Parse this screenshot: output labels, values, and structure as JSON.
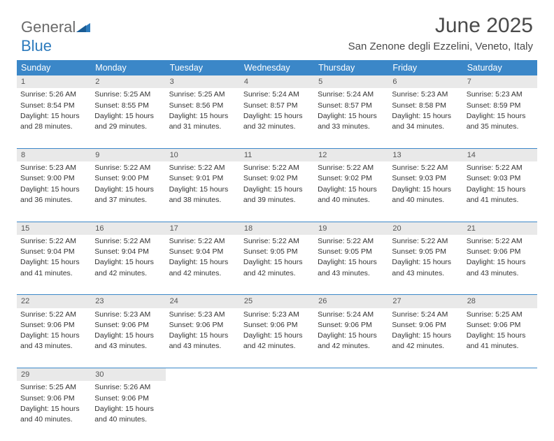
{
  "logo": {
    "part1": "General",
    "part2": "Blue"
  },
  "title": "June 2025",
  "location": "San Zenone degli Ezzelini, Veneto, Italy",
  "header_bg": "#3b87c8",
  "daynum_bg": "#e9e9e9",
  "rule_color": "#3b87c8",
  "text_color": "#333333",
  "columns": [
    "Sunday",
    "Monday",
    "Tuesday",
    "Wednesday",
    "Thursday",
    "Friday",
    "Saturday"
  ],
  "weeks": [
    {
      "nums": [
        "1",
        "2",
        "3",
        "4",
        "5",
        "6",
        "7"
      ],
      "cells": [
        {
          "sunrise": "Sunrise: 5:26 AM",
          "sunset": "Sunset: 8:54 PM",
          "day1": "Daylight: 15 hours",
          "day2": "and 28 minutes."
        },
        {
          "sunrise": "Sunrise: 5:25 AM",
          "sunset": "Sunset: 8:55 PM",
          "day1": "Daylight: 15 hours",
          "day2": "and 29 minutes."
        },
        {
          "sunrise": "Sunrise: 5:25 AM",
          "sunset": "Sunset: 8:56 PM",
          "day1": "Daylight: 15 hours",
          "day2": "and 31 minutes."
        },
        {
          "sunrise": "Sunrise: 5:24 AM",
          "sunset": "Sunset: 8:57 PM",
          "day1": "Daylight: 15 hours",
          "day2": "and 32 minutes."
        },
        {
          "sunrise": "Sunrise: 5:24 AM",
          "sunset": "Sunset: 8:57 PM",
          "day1": "Daylight: 15 hours",
          "day2": "and 33 minutes."
        },
        {
          "sunrise": "Sunrise: 5:23 AM",
          "sunset": "Sunset: 8:58 PM",
          "day1": "Daylight: 15 hours",
          "day2": "and 34 minutes."
        },
        {
          "sunrise": "Sunrise: 5:23 AM",
          "sunset": "Sunset: 8:59 PM",
          "day1": "Daylight: 15 hours",
          "day2": "and 35 minutes."
        }
      ]
    },
    {
      "nums": [
        "8",
        "9",
        "10",
        "11",
        "12",
        "13",
        "14"
      ],
      "cells": [
        {
          "sunrise": "Sunrise: 5:23 AM",
          "sunset": "Sunset: 9:00 PM",
          "day1": "Daylight: 15 hours",
          "day2": "and 36 minutes."
        },
        {
          "sunrise": "Sunrise: 5:22 AM",
          "sunset": "Sunset: 9:00 PM",
          "day1": "Daylight: 15 hours",
          "day2": "and 37 minutes."
        },
        {
          "sunrise": "Sunrise: 5:22 AM",
          "sunset": "Sunset: 9:01 PM",
          "day1": "Daylight: 15 hours",
          "day2": "and 38 minutes."
        },
        {
          "sunrise": "Sunrise: 5:22 AM",
          "sunset": "Sunset: 9:02 PM",
          "day1": "Daylight: 15 hours",
          "day2": "and 39 minutes."
        },
        {
          "sunrise": "Sunrise: 5:22 AM",
          "sunset": "Sunset: 9:02 PM",
          "day1": "Daylight: 15 hours",
          "day2": "and 40 minutes."
        },
        {
          "sunrise": "Sunrise: 5:22 AM",
          "sunset": "Sunset: 9:03 PM",
          "day1": "Daylight: 15 hours",
          "day2": "and 40 minutes."
        },
        {
          "sunrise": "Sunrise: 5:22 AM",
          "sunset": "Sunset: 9:03 PM",
          "day1": "Daylight: 15 hours",
          "day2": "and 41 minutes."
        }
      ]
    },
    {
      "nums": [
        "15",
        "16",
        "17",
        "18",
        "19",
        "20",
        "21"
      ],
      "cells": [
        {
          "sunrise": "Sunrise: 5:22 AM",
          "sunset": "Sunset: 9:04 PM",
          "day1": "Daylight: 15 hours",
          "day2": "and 41 minutes."
        },
        {
          "sunrise": "Sunrise: 5:22 AM",
          "sunset": "Sunset: 9:04 PM",
          "day1": "Daylight: 15 hours",
          "day2": "and 42 minutes."
        },
        {
          "sunrise": "Sunrise: 5:22 AM",
          "sunset": "Sunset: 9:04 PM",
          "day1": "Daylight: 15 hours",
          "day2": "and 42 minutes."
        },
        {
          "sunrise": "Sunrise: 5:22 AM",
          "sunset": "Sunset: 9:05 PM",
          "day1": "Daylight: 15 hours",
          "day2": "and 42 minutes."
        },
        {
          "sunrise": "Sunrise: 5:22 AM",
          "sunset": "Sunset: 9:05 PM",
          "day1": "Daylight: 15 hours",
          "day2": "and 43 minutes."
        },
        {
          "sunrise": "Sunrise: 5:22 AM",
          "sunset": "Sunset: 9:05 PM",
          "day1": "Daylight: 15 hours",
          "day2": "and 43 minutes."
        },
        {
          "sunrise": "Sunrise: 5:22 AM",
          "sunset": "Sunset: 9:06 PM",
          "day1": "Daylight: 15 hours",
          "day2": "and 43 minutes."
        }
      ]
    },
    {
      "nums": [
        "22",
        "23",
        "24",
        "25",
        "26",
        "27",
        "28"
      ],
      "cells": [
        {
          "sunrise": "Sunrise: 5:22 AM",
          "sunset": "Sunset: 9:06 PM",
          "day1": "Daylight: 15 hours",
          "day2": "and 43 minutes."
        },
        {
          "sunrise": "Sunrise: 5:23 AM",
          "sunset": "Sunset: 9:06 PM",
          "day1": "Daylight: 15 hours",
          "day2": "and 43 minutes."
        },
        {
          "sunrise": "Sunrise: 5:23 AM",
          "sunset": "Sunset: 9:06 PM",
          "day1": "Daylight: 15 hours",
          "day2": "and 43 minutes."
        },
        {
          "sunrise": "Sunrise: 5:23 AM",
          "sunset": "Sunset: 9:06 PM",
          "day1": "Daylight: 15 hours",
          "day2": "and 42 minutes."
        },
        {
          "sunrise": "Sunrise: 5:24 AM",
          "sunset": "Sunset: 9:06 PM",
          "day1": "Daylight: 15 hours",
          "day2": "and 42 minutes."
        },
        {
          "sunrise": "Sunrise: 5:24 AM",
          "sunset": "Sunset: 9:06 PM",
          "day1": "Daylight: 15 hours",
          "day2": "and 42 minutes."
        },
        {
          "sunrise": "Sunrise: 5:25 AM",
          "sunset": "Sunset: 9:06 PM",
          "day1": "Daylight: 15 hours",
          "day2": "and 41 minutes."
        }
      ]
    },
    {
      "nums": [
        "29",
        "30",
        "",
        "",
        "",
        "",
        ""
      ],
      "cells": [
        {
          "sunrise": "Sunrise: 5:25 AM",
          "sunset": "Sunset: 9:06 PM",
          "day1": "Daylight: 15 hours",
          "day2": "and 40 minutes."
        },
        {
          "sunrise": "Sunrise: 5:26 AM",
          "sunset": "Sunset: 9:06 PM",
          "day1": "Daylight: 15 hours",
          "day2": "and 40 minutes."
        },
        null,
        null,
        null,
        null,
        null
      ]
    }
  ]
}
